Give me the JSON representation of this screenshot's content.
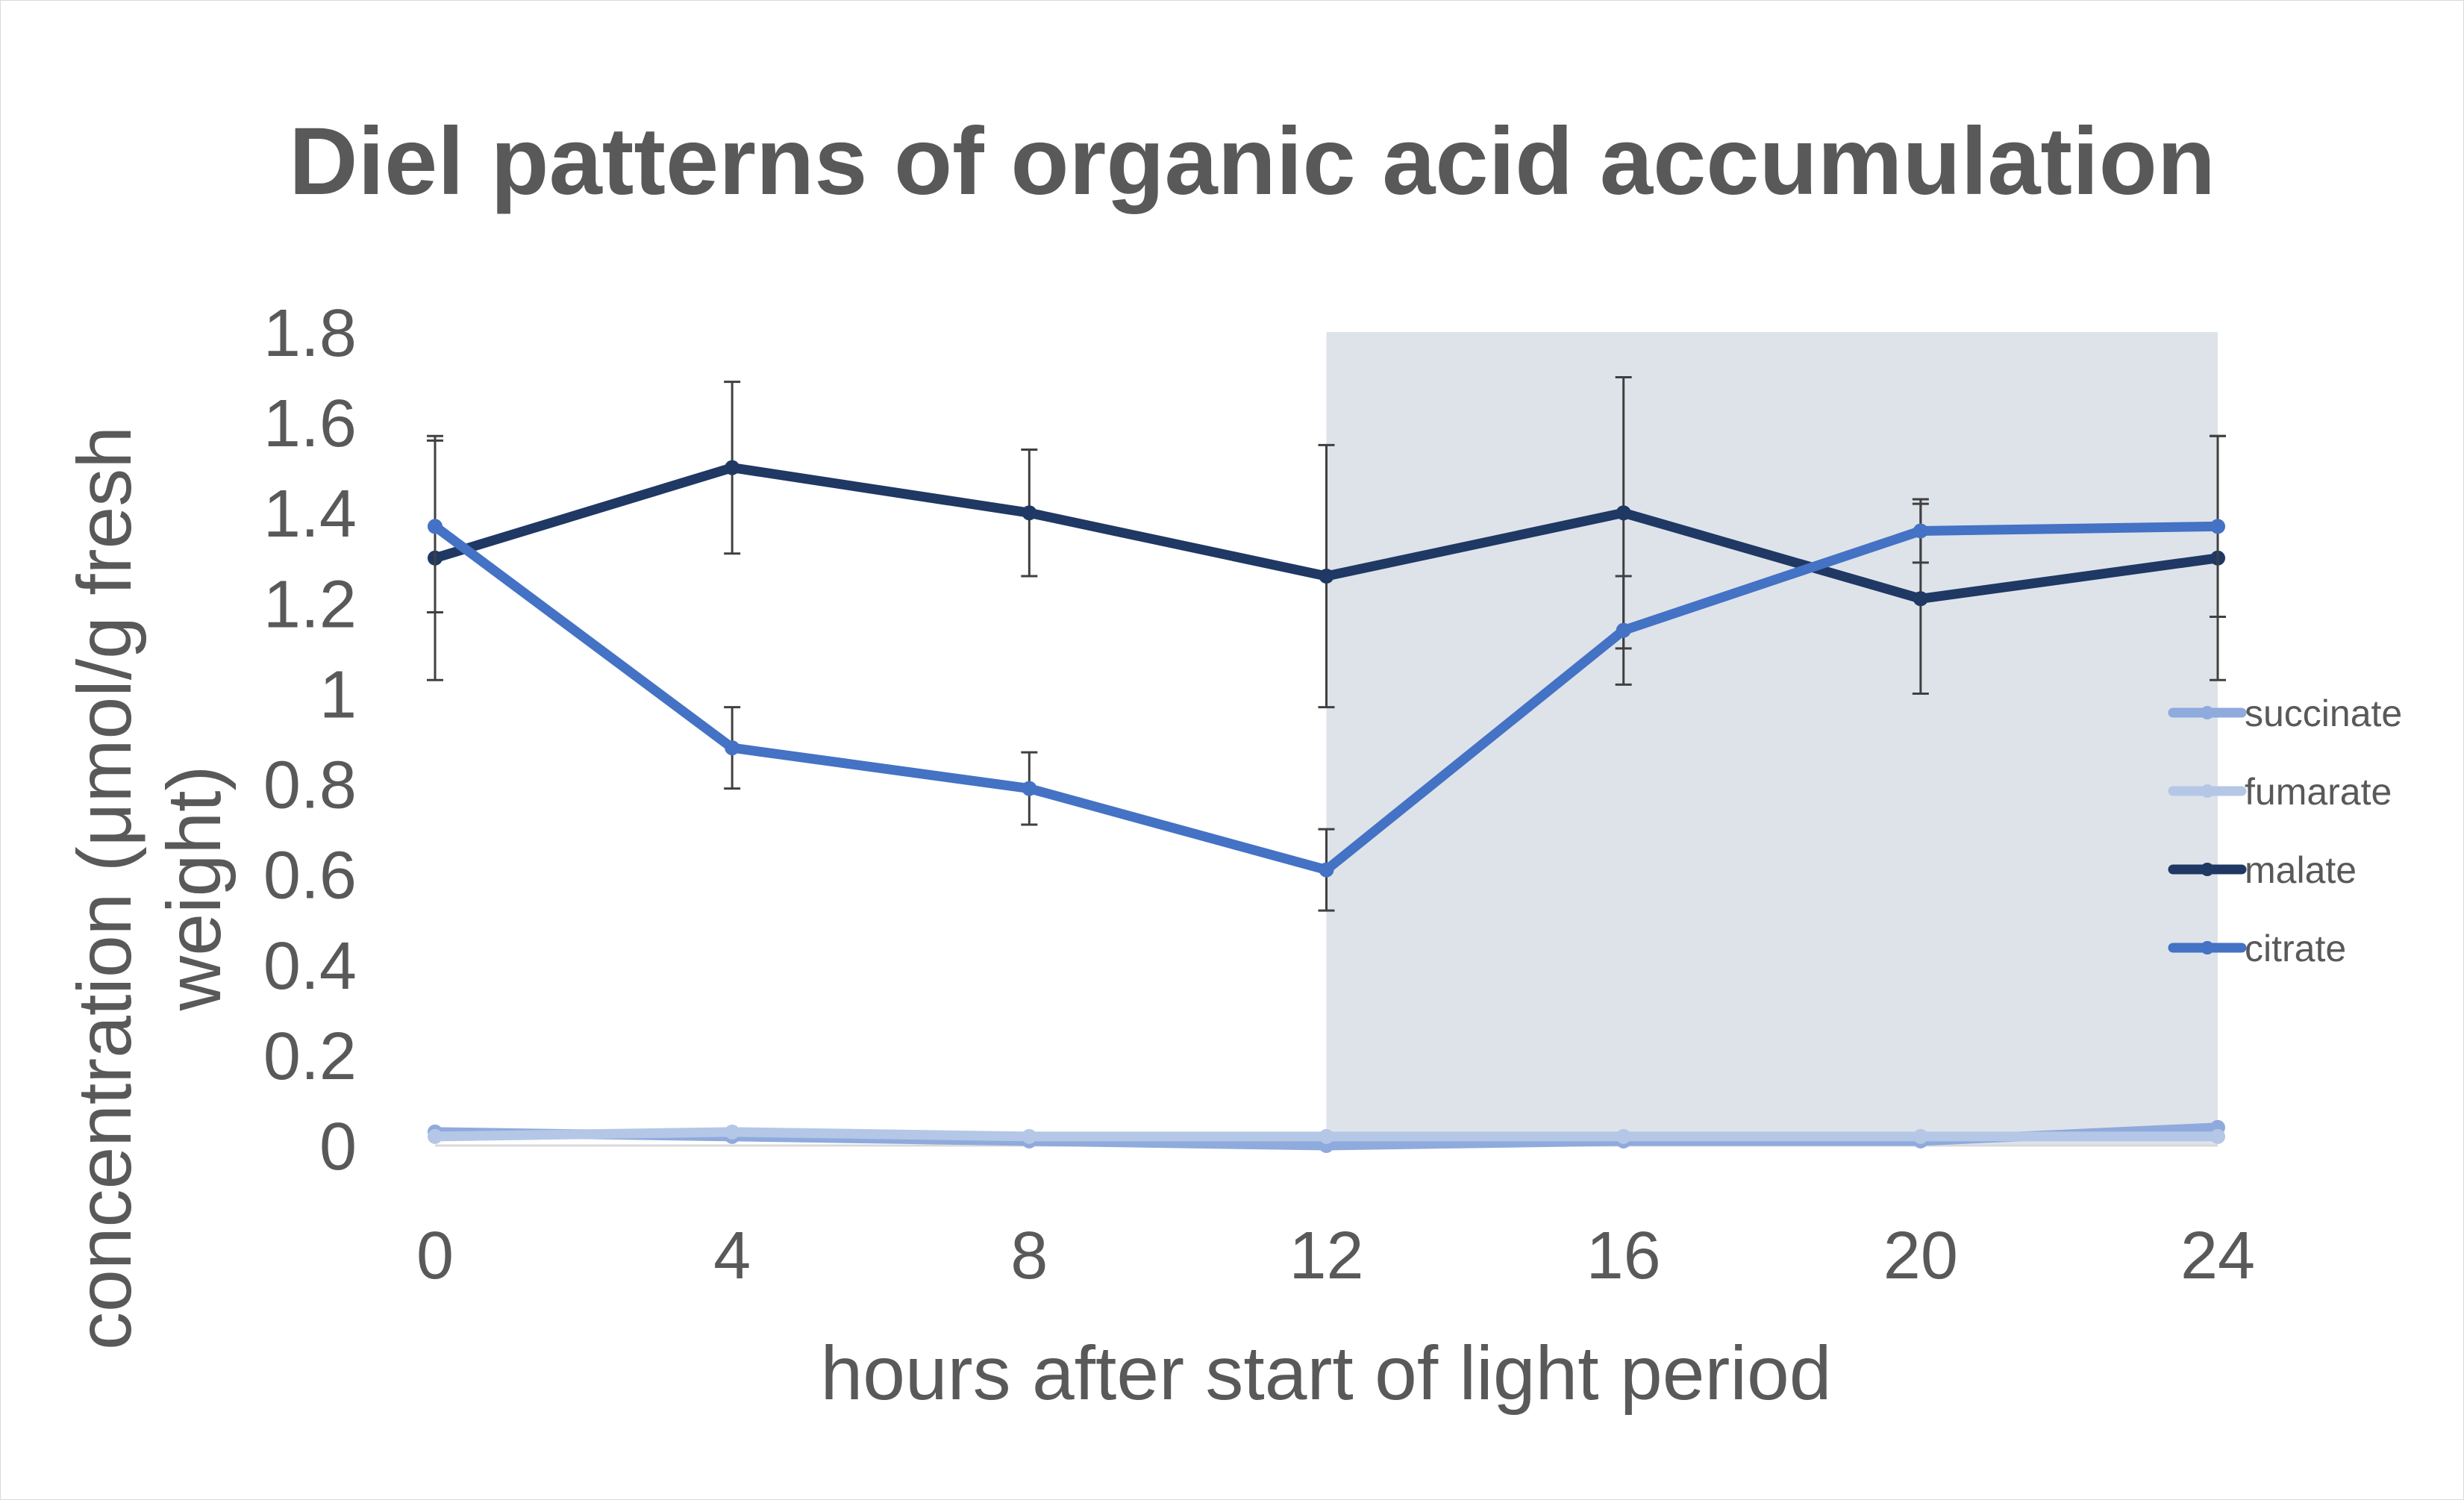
{
  "chart_data": {
    "type": "line",
    "title": "Diel patterns of organic acid accumulation",
    "xlabel": "hours after start of light period",
    "ylabel": "concentration (μmol/g fresh weight)",
    "x": [
      0,
      4,
      8,
      12,
      16,
      20,
      24
    ],
    "x_tick_labels": [
      "0",
      "4",
      "8",
      "12",
      "16",
      "20",
      "24"
    ],
    "y_tick_labels": [
      "0",
      "0.2",
      "0.4",
      "0.6",
      "0.8",
      "1",
      "1.2",
      "1.4",
      "1.6",
      "1.8"
    ],
    "xlim": [
      0,
      24
    ],
    "ylim": [
      0,
      1.8
    ],
    "grid": false,
    "legend_position": "right",
    "shaded_region": {
      "x_start": 12,
      "x_end": 24,
      "meaning_hint": "dark period",
      "color": "#dee3ea"
    },
    "series": [
      {
        "name": "succinate",
        "color": "#8faadc",
        "values": [
          0.03,
          0.02,
          0.01,
          0.0,
          0.01,
          0.01,
          0.04
        ],
        "error": [
          0,
          0,
          0,
          0,
          0,
          0,
          0
        ]
      },
      {
        "name": "fumarate",
        "color": "#b4c7e7",
        "values": [
          0.02,
          0.03,
          0.02,
          0.02,
          0.02,
          0.02,
          0.02
        ],
        "error": [
          0,
          0,
          0,
          0,
          0,
          0,
          0
        ]
      },
      {
        "name": "malate",
        "color": "#1f3864",
        "values": [
          1.3,
          1.5,
          1.4,
          1.26,
          1.4,
          1.21,
          1.3
        ],
        "error": [
          0.27,
          0.19,
          0.14,
          0.29,
          0.3,
          0.21,
          0.27
        ]
      },
      {
        "name": "citrate",
        "color": "#4472c4",
        "values": [
          1.37,
          0.88,
          0.79,
          0.61,
          1.14,
          1.36,
          1.37
        ],
        "error": [
          0.19,
          0.09,
          0.08,
          0.09,
          0.12,
          0.07,
          0.2
        ]
      }
    ]
  }
}
